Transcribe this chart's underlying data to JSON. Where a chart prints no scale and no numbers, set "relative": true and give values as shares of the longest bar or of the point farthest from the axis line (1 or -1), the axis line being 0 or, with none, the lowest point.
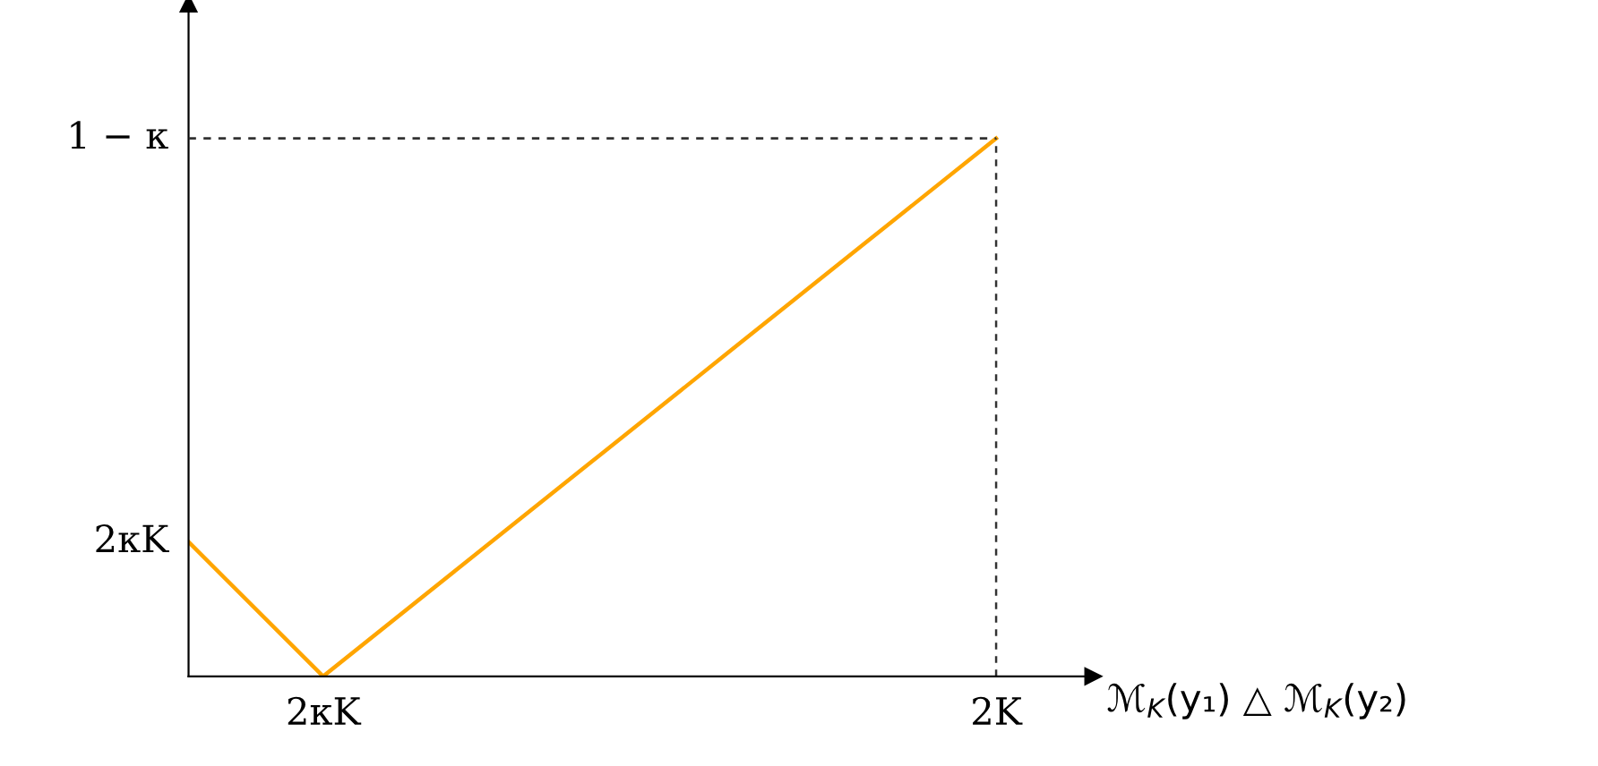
{
  "chart_data": {
    "type": "line",
    "relative": true,
    "xlabel": "ℳ$_{K}$(y₁) △ ℳ$_{K}$(y₂)",
    "categories": [
      null,
      "2κK",
      null,
      null,
      null,
      null,
      "2K"
    ],
    "series": [
      {
        "color": "#ffa500",
        "values": [
          0.25,
          0,
          0.2,
          0.4,
          0.6,
          0.8,
          1
        ]
      }
    ],
    "annotations": [
      "2κK"
    ],
    "ref_lines": [
      {
        "axis": "y",
        "value": 1,
        "label": "1 − κ",
        "color": "#333333",
        "line_style": "dashed"
      },
      {
        "axis": "x",
        "value": "2K",
        "color": "#333333",
        "line_style": "dashed"
      }
    ],
    "marker": "none",
    "line_style": "solid"
  }
}
